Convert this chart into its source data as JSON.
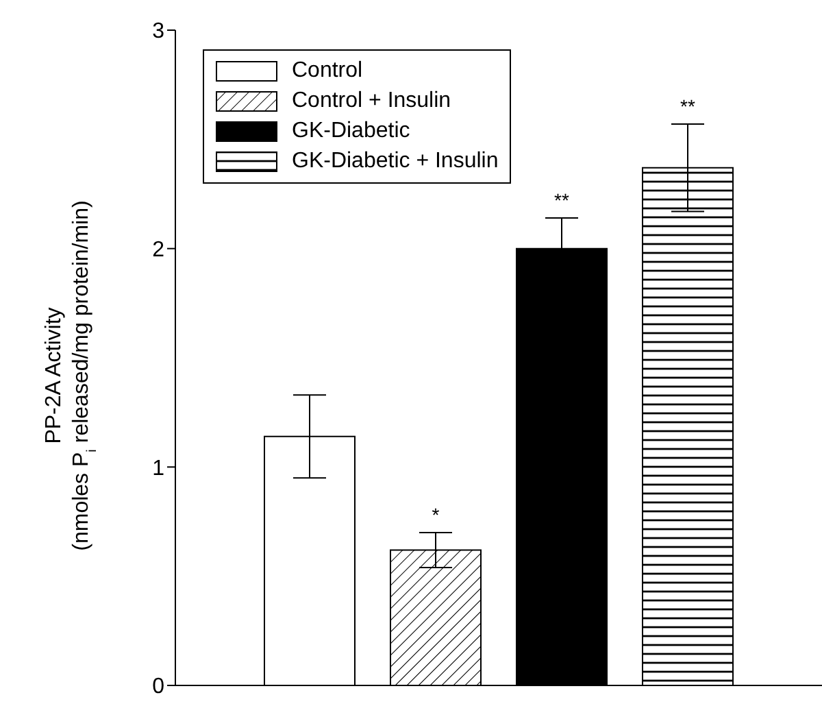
{
  "chart_data": {
    "type": "bar",
    "ylabel": "PP-2A Activity\n(nmoles P$_{i}$ released/mg protein/min)",
    "categories": [
      null
    ],
    "ylim": [
      0,
      3
    ],
    "yticks": [
      0,
      1,
      2,
      3
    ],
    "grid": false,
    "legend": "top left",
    "series": [
      {
        "name": "Control",
        "color": "#ffffff",
        "values": [
          1.14
        ],
        "errors": [
          0.19
        ]
      },
      {
        "name": "Control + Insulin",
        "color": "#000000",
        "values": [
          0.62
        ],
        "errors": [
          0.08
        ],
        "value_labels": [
          "*"
        ]
      },
      {
        "name": "GK-Diabetic",
        "color": "#000000",
        "values": [
          2.0
        ],
        "errors": [
          0.14
        ],
        "value_labels": [
          "**"
        ]
      },
      {
        "name": "GK-Diabetic + Insulin",
        "color": "#000000",
        "values": [
          2.37
        ],
        "errors": [
          0.2
        ],
        "value_labels": [
          "**"
        ]
      }
    ]
  }
}
